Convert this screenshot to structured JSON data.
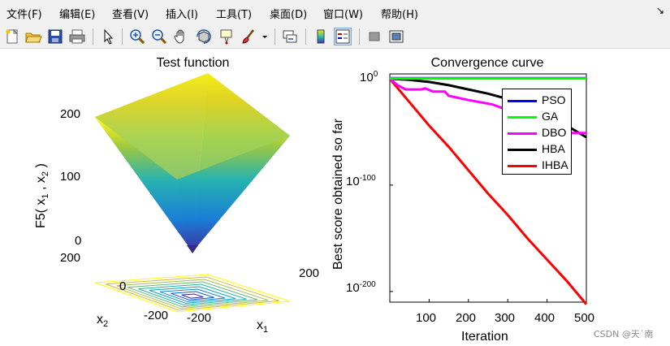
{
  "menubar": {
    "items": [
      "文件(F)",
      "编辑(E)",
      "查看(V)",
      "插入(I)",
      "工具(T)",
      "桌面(D)",
      "窗口(W)",
      "帮助(H)"
    ]
  },
  "toolbar": {
    "buttons": [
      "new-figure",
      "open-file",
      "save-figure",
      "print-figure",
      "edit-plot",
      "zoom-in",
      "zoom-out",
      "pan",
      "rotate-3d",
      "data-cursor",
      "brush",
      "link-plot",
      "insert-colorbar",
      "insert-legend",
      "hide-plot-tools",
      "show-plot-tools"
    ]
  },
  "left_plot": {
    "title": "Test function",
    "zlabel": "F5( x",
    "zlabel_sub1": "1",
    "zlabel_mid": " , x",
    "zlabel_sub2": "2",
    "zlabel_end": " )",
    "z_ticks": [
      "200",
      "100",
      "0"
    ],
    "x2_ticks": [
      "200",
      "0",
      "-200"
    ],
    "x1_ticks": [
      "-200",
      "200"
    ],
    "x2_label": "x",
    "x2_label_sub": "2",
    "x1_label": "x",
    "x1_label_sub": "1"
  },
  "right_plot": {
    "title": "Convergence curve",
    "ylabel": "Best score obtained so far",
    "xlabel": "Iteration",
    "y_ticks": [
      {
        "base": "10",
        "exp": "0"
      },
      {
        "base": "10",
        "exp": "-100"
      },
      {
        "base": "10",
        "exp": "-200"
      }
    ],
    "x_ticks": [
      "100",
      "200",
      "300",
      "400",
      "500"
    ]
  },
  "chart_data": [
    {
      "type": "surface",
      "title": "Test function",
      "xlabel": "x1",
      "ylabel": "x2",
      "zlabel": "F5( x1 , x2 )",
      "x_range": [
        -200,
        200
      ],
      "y_range": [
        -200,
        200
      ],
      "z_range": [
        0,
        200
      ],
      "z_ticks": [
        0,
        100,
        200
      ],
      "colormap": "parula",
      "contour_levels": 9
    },
    {
      "type": "line",
      "title": "Convergence curve",
      "xlabel": "Iteration",
      "ylabel": "Best score obtained so far",
      "yscale": "log",
      "xlim": [
        0,
        500
      ],
      "ylim_exponent": [
        -210,
        0
      ],
      "legend_position": "top-right",
      "series": [
        {
          "name": "PSO",
          "color": "#0000ff",
          "x": [
            0,
            500
          ],
          "log10_y": [
            0.5,
            0.5
          ]
        },
        {
          "name": "GA",
          "color": "#00ff00",
          "x": [
            0,
            500
          ],
          "log10_y": [
            0.3,
            0.3
          ]
        },
        {
          "name": "DBO",
          "color": "#ff00ff",
          "x": [
            0,
            20,
            40,
            80,
            90,
            110,
            140,
            150,
            200,
            260,
            290,
            330,
            350,
            390,
            460,
            500
          ],
          "log10_y": [
            0,
            -6,
            -10,
            -10,
            -9,
            -12,
            -12,
            -16,
            -20,
            -24,
            -28,
            -37,
            -40,
            -45,
            -51,
            -51
          ]
        },
        {
          "name": "HBA",
          "color": "#000000",
          "x": [
            0,
            50,
            100,
            150,
            200,
            250,
            300,
            350,
            400,
            450,
            500
          ],
          "log10_y": [
            0,
            -1,
            -3,
            -6,
            -10,
            -14,
            -19,
            -27,
            -36,
            -44,
            -55
          ]
        },
        {
          "name": "IHBA",
          "color": "#ff0000",
          "x": [
            0,
            50,
            100,
            150,
            200,
            250,
            300,
            350,
            400,
            450,
            500
          ],
          "log10_y": [
            0,
            -22,
            -44,
            -64,
            -86,
            -108,
            -128,
            -150,
            -170,
            -190,
            -212
          ]
        }
      ]
    }
  ],
  "watermark": "CSDN @天˙南"
}
